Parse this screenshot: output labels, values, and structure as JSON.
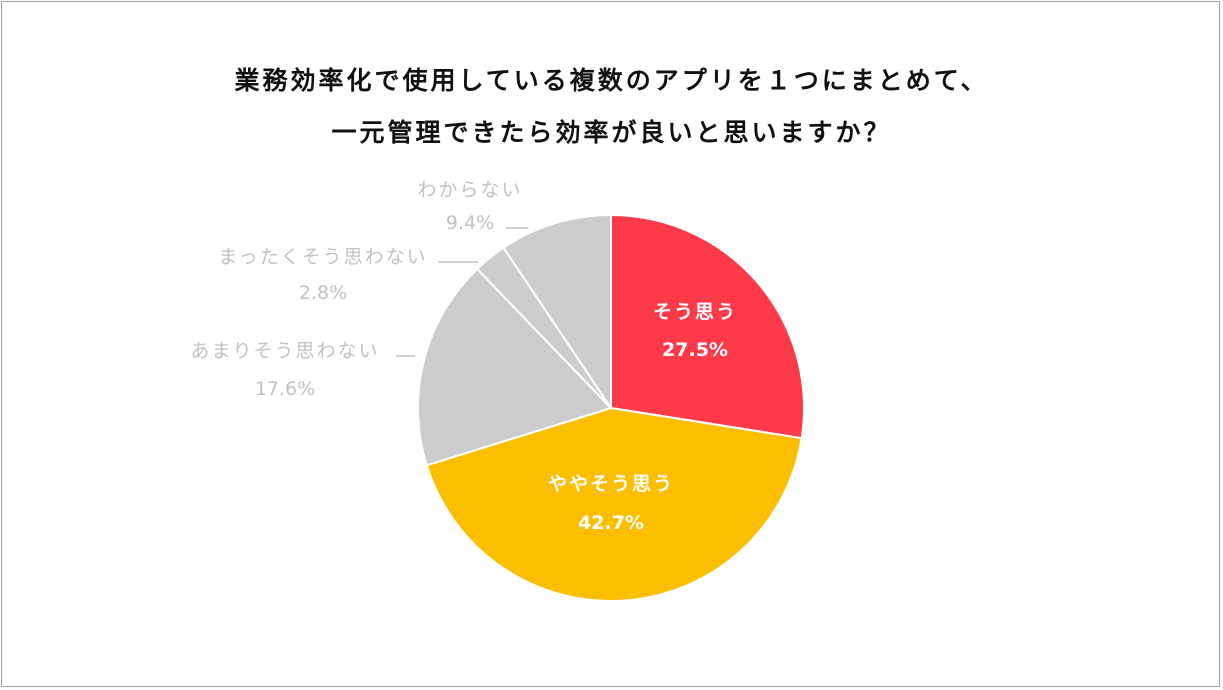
{
  "chart_data": {
    "type": "pie",
    "title_lines": [
      "業務効率化で使用している複数のアプリを１つにまとめて、",
      "一元管理できたら効率が良いと思いますか？"
    ],
    "slices": [
      {
        "label": "そう思う",
        "value": 27.5,
        "value_label": "27.5%",
        "color": "#fd3a4a"
      },
      {
        "label": "ややそう思う",
        "value": 42.7,
        "value_label": "42.7%",
        "color": "#fcbe00"
      },
      {
        "label": "あまりそう思わない",
        "value": 17.6,
        "value_label": "17.6%",
        "color": "#cccccc"
      },
      {
        "label": "まったくそう思わない",
        "value": 2.8,
        "value_label": "2.8%",
        "color": "#cccccc"
      },
      {
        "label": "わからない",
        "value": 9.4,
        "value_label": "9.4%",
        "color": "#cccccc"
      }
    ],
    "inside_label_color": "#ffffff",
    "outside_label_color": "#c2c2c2",
    "separator_color": "#ffffff",
    "frame_color": "#9e9e9e"
  }
}
